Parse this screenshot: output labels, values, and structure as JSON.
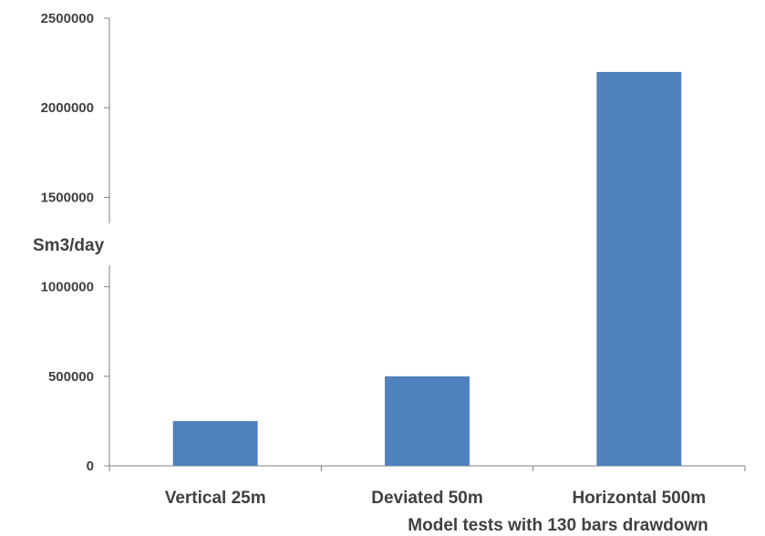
{
  "chart_data": {
    "type": "bar",
    "categories": [
      "Vertical 25m",
      "Deviated 50m",
      "Horizontal 500m"
    ],
    "values": [
      250000,
      500000,
      2200000
    ],
    "title": "",
    "xlabel": "Model tests with 130 bars drawdown",
    "ylabel": "Sm3/day",
    "ylim": [
      0,
      2500000
    ],
    "yticks": [
      "0",
      "500000",
      "1000000",
      "1500000",
      "2000000",
      "2500000"
    ],
    "grid": false,
    "bar_color": "#4F81BD",
    "axis_color": "#808080",
    "text_color": "#404040"
  }
}
